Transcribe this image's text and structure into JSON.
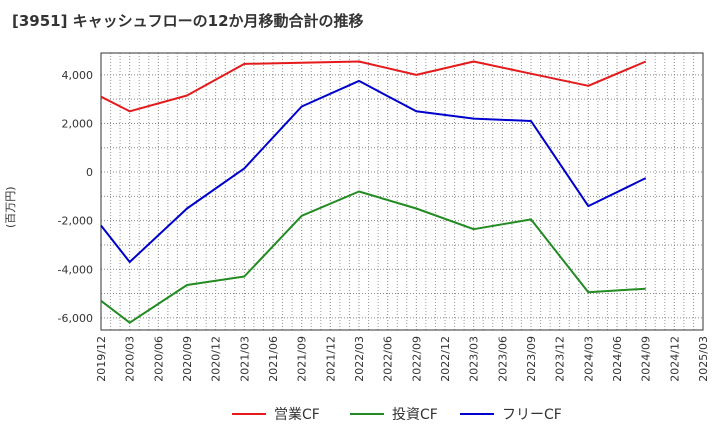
{
  "header": {
    "title": "[3951]  キャッシュフローの12か月移動合計の推移",
    "unit": "(百万円)"
  },
  "chart_data": {
    "type": "line",
    "title": "[3951]  キャッシュフローの12か月移動合計の推移",
    "xlabel": "",
    "ylabel": "(百万円)",
    "ylim": [
      -6500,
      4900
    ],
    "yticks": [
      4000,
      2000,
      0,
      -2000,
      -4000,
      -6000
    ],
    "ytick_labels": [
      "4,000",
      "2,000",
      "0",
      "-2,000",
      "-4,000",
      "-6,000"
    ],
    "grid": true,
    "legend_position": "bottom",
    "x_ticks": [
      "2019/12",
      "2020/03",
      "2020/06",
      "2020/09",
      "2020/12",
      "2021/03",
      "2021/06",
      "2021/09",
      "2021/12",
      "2022/03",
      "2022/06",
      "2022/09",
      "2022/12",
      "2023/03",
      "2023/06",
      "2023/09",
      "2023/12",
      "2024/03",
      "2024/06",
      "2024/09",
      "2024/12",
      "2025/03"
    ],
    "series": [
      {
        "name": "営業CF",
        "color": "#e41a1c",
        "x": [
          "2019/12",
          "2020/03",
          "2020/09",
          "2021/03",
          "2022/03",
          "2022/09",
          "2023/03",
          "2023/09",
          "2024/03",
          "2024/09"
        ],
        "values": [
          3100,
          2500,
          3150,
          4450,
          4550,
          4000,
          4550,
          4050,
          3550,
          4550
        ]
      },
      {
        "name": "投資CF",
        "color": "#228b22",
        "x": [
          "2019/12",
          "2020/03",
          "2020/09",
          "2021/03",
          "2021/09",
          "2022/03",
          "2022/09",
          "2023/03",
          "2023/09",
          "2024/03",
          "2024/09"
        ],
        "values": [
          -5300,
          -6200,
          -4650,
          -4300,
          -1800,
          -800,
          -1500,
          -2350,
          -1950,
          -4950,
          -4800
        ]
      },
      {
        "name": "フリーCF",
        "color": "#0000cd",
        "x": [
          "2019/12",
          "2020/03",
          "2020/09",
          "2021/03",
          "2021/09",
          "2022/03",
          "2022/09",
          "2023/03",
          "2023/09",
          "2024/03",
          "2024/09"
        ],
        "values": [
          -2200,
          -3700,
          -1500,
          150,
          2700,
          3750,
          2500,
          2200,
          2100,
          -1400,
          -250
        ]
      }
    ]
  }
}
